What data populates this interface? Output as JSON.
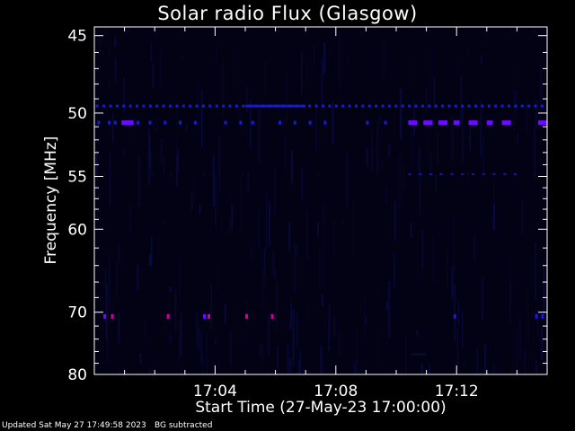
{
  "chart_data": {
    "type": "heatmap",
    "title": "Solar radio Flux (Glasgow)",
    "xlabel": "Start Time (27-May-23 17:00:00)",
    "ylabel": "Frequency [MHz]",
    "x_start": "17:00:00",
    "x_range_minutes": [
      0.0,
      15.0
    ],
    "x_ticks": [
      {
        "minute": 4,
        "label": "17:04"
      },
      {
        "minute": 8,
        "label": "17:08"
      },
      {
        "minute": 12,
        "label": "17:12"
      }
    ],
    "y_ticks": [
      {
        "mhz": 45,
        "label": "45"
      },
      {
        "mhz": 50,
        "label": "50"
      },
      {
        "mhz": 55,
        "label": "55"
      },
      {
        "mhz": 60,
        "label": "60"
      },
      {
        "mhz": 70,
        "label": "70"
      },
      {
        "mhz": 80,
        "label": "80"
      }
    ],
    "y_scale": "reciprocal",
    "y_range_mhz": [
      44.5,
      80
    ],
    "emission_lines_mhz": [
      {
        "mhz": 49.5,
        "note": "persistent dashed line"
      },
      {
        "mhz": 50.7,
        "note": "intermittent bright bursts"
      },
      {
        "mhz": 54.8,
        "note": "weak dashed line"
      },
      {
        "mhz": 70.6,
        "note": "sporadic bright dots"
      }
    ],
    "colors": {
      "background": "#000000",
      "low": "#0a0a30",
      "mid": "#1a1ad8",
      "high": "#6a0cff",
      "peak": "#d000a0"
    }
  },
  "footer": {
    "updated": "Updated Sat May 27 17:49:58 2023",
    "note": "BG subtracted"
  }
}
